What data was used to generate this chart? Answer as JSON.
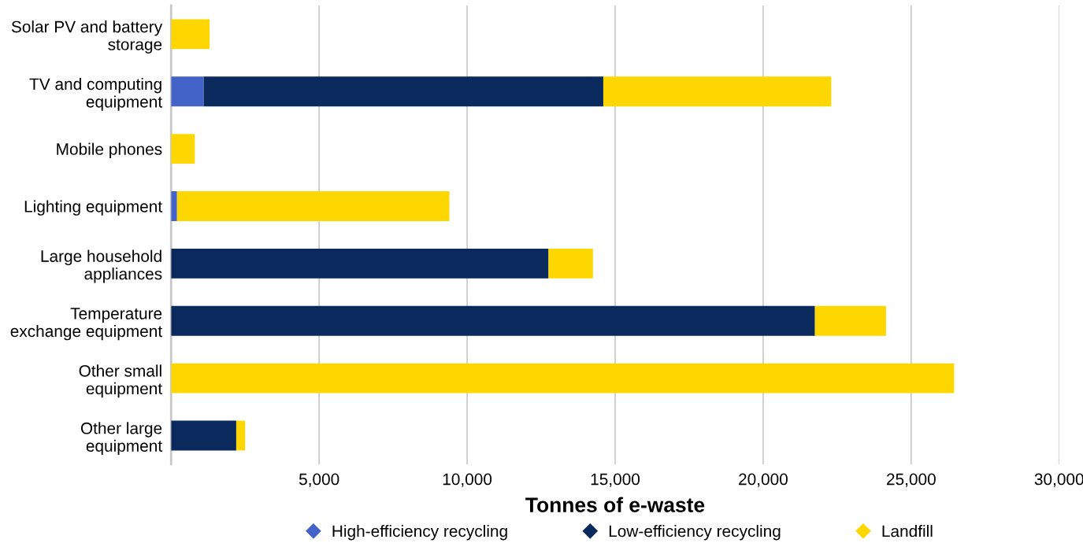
{
  "chart_data": {
    "type": "bar",
    "orientation": "horizontal",
    "stacked": true,
    "xlabel": "Tonnes of e-waste",
    "categories": [
      "Solar PV and battery storage",
      "TV and computing equipment",
      "Mobile phones",
      "Lighting equipment",
      "Large household appliances",
      "Temperature exchange equipment",
      "Other small equipment",
      "Other large equipment"
    ],
    "series": [
      {
        "name": "High-efficiency recycling",
        "color": "#4363c9",
        "values": [
          0,
          1100,
          0,
          200,
          0,
          0,
          0,
          0
        ]
      },
      {
        "name": "Low-efficiency recycling",
        "color": "#0a2a5e",
        "values": [
          0,
          13500,
          0,
          0,
          12750,
          21750,
          0,
          2200
        ]
      },
      {
        "name": "Landfill",
        "color": "#ffd700",
        "values": [
          1300,
          7700,
          800,
          9200,
          1500,
          2400,
          26450,
          300
        ]
      }
    ],
    "xlim": [
      0,
      30000
    ],
    "xticks": [
      {
        "value": 5000,
        "label": "5,000"
      },
      {
        "value": 10000,
        "label": "10,000"
      },
      {
        "value": 15000,
        "label": "15,000"
      },
      {
        "value": 20000,
        "label": "20,000"
      },
      {
        "value": 25000,
        "label": "25,000"
      },
      {
        "value": 30000,
        "label": "30,000"
      }
    ],
    "grid": "x",
    "legend": "bottom",
    "marker": "diamond"
  }
}
